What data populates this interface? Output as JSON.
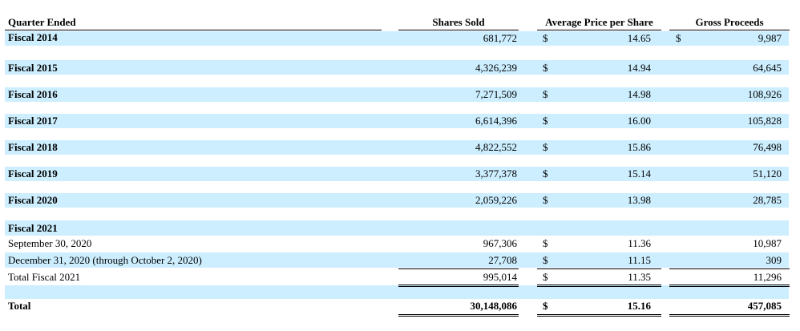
{
  "table": {
    "headers": {
      "quarter": "Quarter Ended",
      "shares": "Shares Sold",
      "avg_price": "Average Price per Share",
      "proceeds": "Gross Proceeds"
    },
    "currency_symbol": "$",
    "rows": [
      {
        "label": "Fiscal 2014",
        "shares": "681,772",
        "price": "14.65",
        "proceeds": "9,987"
      },
      {
        "label": "Fiscal 2015",
        "shares": "4,326,239",
        "price": "14.94",
        "proceeds": "64,645"
      },
      {
        "label": "Fiscal 2016",
        "shares": "7,271,509",
        "price": "14.98",
        "proceeds": "108,926"
      },
      {
        "label": "Fiscal 2017",
        "shares": "6,614,396",
        "price": "16.00",
        "proceeds": "105,828"
      },
      {
        "label": "Fiscal 2018",
        "shares": "4,822,552",
        "price": "15.86",
        "proceeds": "76,498"
      },
      {
        "label": "Fiscal 2019",
        "shares": "3,377,378",
        "price": "15.14",
        "proceeds": "51,120"
      },
      {
        "label": "Fiscal 2020",
        "shares": "2,059,226",
        "price": "13.98",
        "proceeds": "28,785"
      },
      {
        "label": "Fiscal 2021"
      },
      {
        "label": "September 30, 2020",
        "shares": "967,306",
        "price": "11.36",
        "proceeds": "10,987"
      },
      {
        "label": "December 31, 2020 (through October 2, 2020)",
        "shares": "27,708",
        "price": "11.15",
        "proceeds": "309"
      },
      {
        "label": "Total Fiscal 2021",
        "shares": "995,014",
        "price": "11.35",
        "proceeds": "11,296"
      },
      {
        "label": "Total",
        "shares": "30,148,086",
        "price": "15.16",
        "proceeds": "457,085"
      }
    ]
  },
  "colors": {
    "band": "#cceeff",
    "text": "#000000",
    "background": "#ffffff"
  }
}
